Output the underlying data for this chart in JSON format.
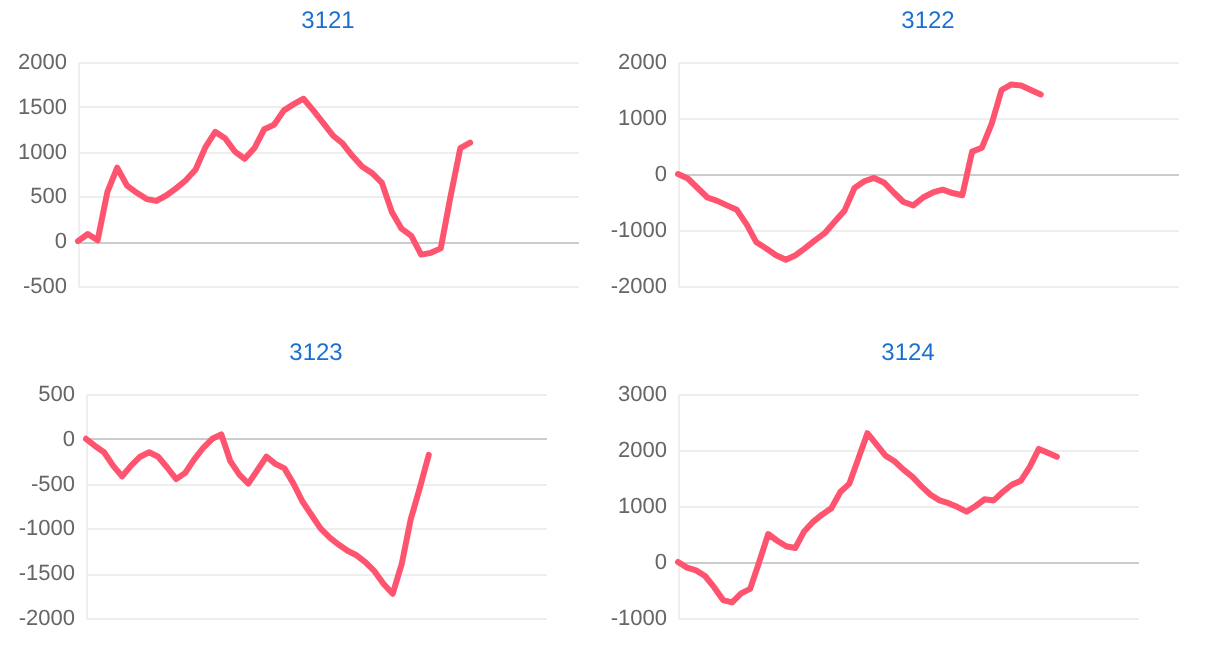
{
  "chart_data": [
    {
      "type": "line",
      "title": "3121",
      "categories": [
        null,
        null,
        null,
        null,
        null,
        null,
        null,
        null,
        null,
        null,
        null,
        null,
        null,
        null,
        null,
        null,
        null,
        null,
        null,
        null,
        null,
        null,
        null,
        null,
        null,
        null,
        null,
        null,
        null,
        null,
        null,
        null,
        null,
        null,
        null,
        null,
        null,
        null,
        null,
        null,
        null,
        null,
        null,
        null,
        null,
        null,
        null,
        null,
        null,
        null,
        null,
        null
      ],
      "series": [
        {
          "color": "#ff5470",
          "values": [
            0,
            80,
            10,
            550,
            820,
            620,
            540,
            470,
            450,
            510,
            590,
            680,
            800,
            1050,
            1220,
            1150,
            1000,
            920,
            1040,
            1250,
            1300,
            1460,
            1530,
            1590,
            1460,
            1320,
            1180,
            1090,
            950,
            830,
            760,
            650,
            330,
            140,
            60,
            -150,
            -130,
            -80,
            500,
            1040,
            1100,
            null,
            null,
            null,
            null,
            null,
            null,
            null,
            null,
            null,
            null,
            null
          ]
        }
      ],
      "ylim": [
        -500,
        2000
      ],
      "yticks": [
        -500,
        0,
        500,
        1000,
        1500,
        2000
      ],
      "grid": "y",
      "tick_labels": "y"
    },
    {
      "type": "line",
      "title": "3122",
      "categories": [
        null,
        null,
        null,
        null,
        null,
        null,
        null,
        null,
        null,
        null,
        null,
        null,
        null,
        null,
        null,
        null,
        null,
        null,
        null,
        null,
        null,
        null,
        null,
        null,
        null,
        null,
        null,
        null,
        null,
        null,
        null,
        null,
        null,
        null,
        null,
        null,
        null,
        null,
        null,
        null,
        null,
        null,
        null,
        null,
        null,
        null,
        null,
        null,
        null,
        null,
        null,
        null
      ],
      "series": [
        {
          "color": "#ff5470",
          "values": [
            0,
            -80,
            -250,
            -420,
            -480,
            -560,
            -640,
            -900,
            -1220,
            -1330,
            -1450,
            -1530,
            -1450,
            -1320,
            -1180,
            -1050,
            -850,
            -650,
            -250,
            -130,
            -70,
            -150,
            -330,
            -500,
            -560,
            -420,
            -330,
            -280,
            -340,
            -380,
            400,
            470,
            900,
            1500,
            1600,
            1580,
            1500,
            1420,
            null,
            null,
            null,
            null,
            null,
            null,
            null,
            null,
            null,
            null,
            null,
            null,
            null,
            null
          ]
        }
      ],
      "ylim": [
        -2000,
        2000
      ],
      "yticks": [
        -2000,
        -1000,
        0,
        1000,
        2000
      ],
      "grid": "y",
      "tick_labels": "y"
    },
    {
      "type": "line",
      "title": "3123",
      "categories": [
        null,
        null,
        null,
        null,
        null,
        null,
        null,
        null,
        null,
        null,
        null,
        null,
        null,
        null,
        null,
        null,
        null,
        null,
        null,
        null,
        null,
        null,
        null,
        null,
        null,
        null,
        null,
        null,
        null,
        null,
        null,
        null,
        null,
        null,
        null,
        null,
        null,
        null,
        null,
        null,
        null,
        null,
        null,
        null,
        null,
        null,
        null,
        null,
        null,
        null,
        null,
        null
      ],
      "series": [
        {
          "color": "#ff5470",
          "values": [
            0,
            -80,
            -150,
            -300,
            -420,
            -300,
            -200,
            -150,
            -200,
            -320,
            -450,
            -380,
            -230,
            -100,
            0,
            50,
            -250,
            -400,
            -500,
            -350,
            -200,
            -280,
            -330,
            -500,
            -700,
            -850,
            -1000,
            -1100,
            -1180,
            -1250,
            -1300,
            -1380,
            -1480,
            -1620,
            -1730,
            -1400,
            -900,
            -550,
            -180,
            null,
            null,
            null,
            null,
            null,
            null,
            null,
            null,
            null,
            null,
            null,
            null,
            null
          ]
        }
      ],
      "ylim": [
        -2000,
        500
      ],
      "yticks": [
        -2000,
        -1500,
        -1000,
        -500,
        0,
        500
      ],
      "grid": "y",
      "tick_labels": "y"
    },
    {
      "type": "line",
      "title": "3124",
      "categories": [
        null,
        null,
        null,
        null,
        null,
        null,
        null,
        null,
        null,
        null,
        null,
        null,
        null,
        null,
        null,
        null,
        null,
        null,
        null,
        null,
        null,
        null,
        null,
        null,
        null,
        null,
        null,
        null,
        null,
        null,
        null,
        null,
        null,
        null,
        null,
        null,
        null,
        null,
        null,
        null,
        null,
        null,
        null,
        null,
        null,
        null,
        null,
        null,
        null,
        null,
        null,
        null
      ],
      "series": [
        {
          "color": "#ff5470",
          "values": [
            0,
            -100,
            -150,
            -250,
            -450,
            -680,
            -720,
            -560,
            -480,
            0,
            500,
            380,
            280,
            250,
            550,
            720,
            850,
            960,
            1250,
            1400,
            1850,
            2300,
            2100,
            1900,
            1800,
            1650,
            1520,
            1350,
            1200,
            1100,
            1050,
            980,
            900,
            1000,
            1120,
            1100,
            1250,
            1380,
            1450,
            1700,
            2020,
            1950,
            1880,
            null,
            null,
            null,
            null,
            null,
            null,
            null,
            null,
            null
          ]
        }
      ],
      "ylim": [
        -1000,
        3000
      ],
      "yticks": [
        -1000,
        0,
        1000,
        2000,
        3000
      ],
      "grid": "y",
      "tick_labels": "y"
    }
  ]
}
